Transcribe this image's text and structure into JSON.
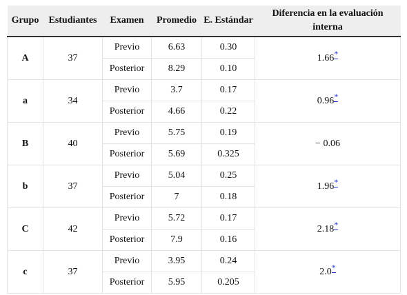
{
  "table": {
    "headers": [
      "Grupo",
      "Estudiantes",
      "Examen",
      "Promedio",
      "E. Estándar",
      "Diferencia en la evaluación interna"
    ],
    "rows": [
      {
        "group": "A",
        "students": "37",
        "exams": [
          {
            "exam": "Previo",
            "mean": "6.63",
            "se": "0.30"
          },
          {
            "exam": "Posterior",
            "mean": "8.29",
            "se": "0.10"
          }
        ],
        "diff": "1.66",
        "marker": "*"
      },
      {
        "group": "a",
        "students": "34",
        "exams": [
          {
            "exam": "Previo",
            "mean": "3.7",
            "se": "0.17"
          },
          {
            "exam": "Posterior",
            "mean": "4.66",
            "se": "0.22"
          }
        ],
        "diff": "0.96",
        "marker": "*"
      },
      {
        "group": "B",
        "students": "40",
        "exams": [
          {
            "exam": "Previo",
            "mean": "5.75",
            "se": "0.19"
          },
          {
            "exam": "Posterior",
            "mean": "5.69",
            "se": "0.325"
          }
        ],
        "diff": "− 0.06",
        "marker": ""
      },
      {
        "group": "b",
        "students": "37",
        "exams": [
          {
            "exam": "Previo",
            "mean": "5.04",
            "se": "0.25"
          },
          {
            "exam": "Posterior",
            "mean": "7",
            "se": "0.18"
          }
        ],
        "diff": "1.96",
        "marker": "*"
      },
      {
        "group": "C",
        "students": "42",
        "exams": [
          {
            "exam": "Previo",
            "mean": "5.72",
            "se": "0.17"
          },
          {
            "exam": "Posterior",
            "mean": "7.9",
            "se": "0.16"
          }
        ],
        "diff": "2.18",
        "marker": "*"
      },
      {
        "group": "c",
        "students": "37",
        "exams": [
          {
            "exam": "Previo",
            "mean": "3.95",
            "se": "0.24"
          },
          {
            "exam": "Posterior",
            "mean": "5.95",
            "se": "0.205"
          }
        ],
        "diff": "2.0",
        "marker": "*"
      }
    ]
  },
  "colors": {
    "header_bg": "#eeeeee",
    "marker": "#2233cc",
    "grid": "#e3e3e3"
  }
}
